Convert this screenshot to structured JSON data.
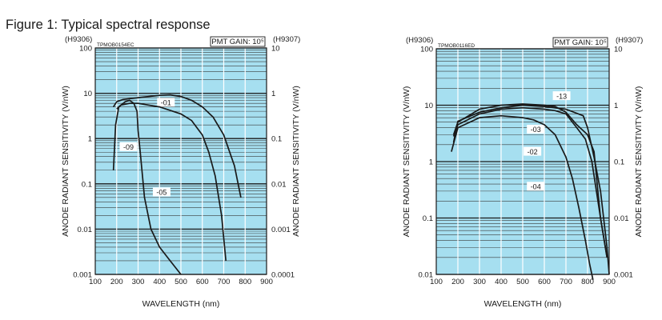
{
  "figure_title": "Figure 1: Typical spectral response",
  "chart_data": [
    {
      "type": "line",
      "drawing_code": "TPMOB0154EC",
      "gain_label": "PMT GAIN: 10⁵",
      "left_model": "(H9306)",
      "right_model": "(H9307)",
      "xlabel": "WAVELENGTH (nm)",
      "ylabel_left": "ANODE RADIANT SENSITIVITY (V/nW)",
      "ylabel_right": "ANODE RADIANT SENSITIVITY (V/nW)",
      "xlim": [
        100,
        900
      ],
      "ylim_left": [
        0.001,
        100
      ],
      "ylim_right": [
        0.0001,
        10
      ],
      "yscale": "log",
      "x_ticks": [
        "100",
        "200",
        "300",
        "400",
        "500",
        "600",
        "700",
        "800",
        "900"
      ],
      "y_ticks_left": [
        "100",
        "10",
        "1",
        "0.1",
        "0.01",
        "0.001"
      ],
      "y_ticks_right": [
        "10",
        "1",
        "0.1",
        "0.01",
        "0.001",
        "0.0001"
      ],
      "grid": true,
      "series": [
        {
          "name": "-01",
          "label_at": [
            430,
            6.2
          ],
          "x": [
            185,
            200,
            230,
            300,
            400,
            450,
            500,
            550,
            600,
            650,
            700,
            750,
            780
          ],
          "y": [
            5,
            6.5,
            7.3,
            8,
            9,
            9.2,
            8.5,
            7,
            5,
            3,
            1.2,
            0.25,
            0.05
          ]
        },
        {
          "name": "-09",
          "label_at": [
            255,
            0.65
          ],
          "x": [
            185,
            195,
            210,
            240,
            260,
            280,
            295,
            300,
            310,
            330,
            360,
            400,
            450,
            500
          ],
          "y": [
            0.2,
            2,
            5,
            6.5,
            7,
            6,
            4,
            1.5,
            0.5,
            0.05,
            0.01,
            0.004,
            0.002,
            0.001
          ]
        },
        {
          "name": "-05",
          "label_at": [
            410,
            0.065
          ],
          "x": [
            200,
            220,
            260,
            300,
            400,
            500,
            550,
            600,
            630,
            660,
            690,
            710
          ],
          "y": [
            4.5,
            5.5,
            6,
            6,
            5,
            3.5,
            2.5,
            1.2,
            0.5,
            0.15,
            0.02,
            0.002
          ]
        }
      ]
    },
    {
      "type": "line",
      "drawing_code": "TPMOB0116ED",
      "gain_label": "PMT GAIN: 10⁵",
      "left_model": "(H9306)",
      "right_model": "(H9307)",
      "xlabel": "WAVELENGTH (nm)",
      "ylabel_left": "ANODE RADIANT SENSITIVITY (V/nW)",
      "ylabel_right": "ANODE RADIANT SENSITIVITY (V/nW)",
      "xlim": [
        100,
        900
      ],
      "ylim_left": [
        0.01,
        100
      ],
      "ylim_right": [
        0.001,
        10
      ],
      "yscale": "log",
      "x_ticks": [
        "100",
        "200",
        "300",
        "400",
        "500",
        "600",
        "700",
        "800",
        "900"
      ],
      "y_ticks_left": [
        "100",
        "10",
        "1",
        "0.1",
        "0.01"
      ],
      "y_ticks_right": [
        "10",
        "1",
        "0.1",
        "0.01",
        "0.001"
      ],
      "grid": true,
      "series": [
        {
          "name": "-13",
          "label_at": [
            680,
            14.5
          ],
          "x": [
            180,
            200,
            300,
            400,
            500,
            600,
            700,
            780,
            800,
            830,
            860,
            890,
            900
          ],
          "y": [
            2.2,
            5.2,
            7.5,
            9,
            10,
            9.5,
            8.5,
            6.5,
            4,
            1.2,
            0.3,
            0.03,
            0.01
          ]
        },
        {
          "name": "-03",
          "label_at": [
            560,
            3.7
          ],
          "x": [
            180,
            200,
            300,
            400,
            500,
            600,
            650,
            700,
            750,
            800,
            830,
            860,
            890
          ],
          "y": [
            3,
            5,
            8.5,
            10,
            10.5,
            10,
            9.5,
            7.5,
            4.5,
            3,
            1.5,
            0.1,
            0.02
          ]
        },
        {
          "name": "-02",
          "label_at": [
            545,
            1.5
          ],
          "x": [
            180,
            200,
            300,
            400,
            500,
            600,
            650,
            700,
            750,
            790,
            820,
            860,
            890
          ],
          "y": [
            2.8,
            4.5,
            7,
            8.5,
            9,
            8.5,
            8,
            7,
            4,
            2.5,
            1,
            0.1,
            0.02
          ]
        },
        {
          "name": "-04",
          "label_at": [
            560,
            0.36
          ],
          "x": [
            170,
            200,
            300,
            400,
            500,
            550,
            600,
            650,
            700,
            730,
            760,
            790,
            810,
            825
          ],
          "y": [
            1.5,
            4,
            6,
            6.5,
            6,
            5.5,
            4.5,
            3,
            1.2,
            0.5,
            0.15,
            0.04,
            0.015,
            0.008
          ]
        }
      ]
    }
  ]
}
